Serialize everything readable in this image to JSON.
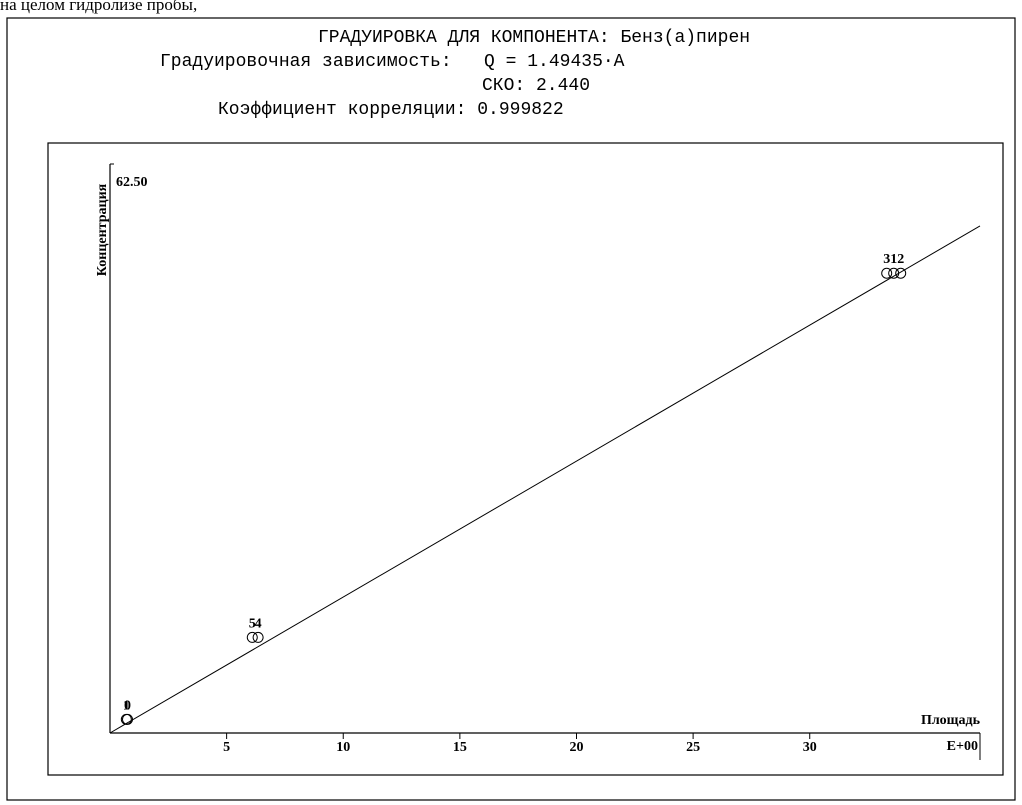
{
  "page_note": "на   целом   гидролизе   пробы,",
  "header": {
    "title": "ГРАДУИРОВКА ДЛЯ КОМПОНЕНТА: Бенз(а)пирен",
    "dependence": "Градуировочная зависимость:   Q = 1.49435·A",
    "sko": "СКО: 2.440",
    "correlation": "Коэффициент корреляции: 0.999822"
  },
  "chart_data": {
    "type": "scatter",
    "y_label": "Концентрация",
    "x_label": "Площадь",
    "x_exponent": "E+00",
    "xlim": [
      0,
      37.3
    ],
    "ylim": [
      0,
      62.5
    ],
    "xticks": [
      5,
      10,
      15,
      20,
      25,
      30
    ],
    "yticks": [
      {
        "value": 62.5,
        "label": "62.50"
      }
    ],
    "series": [
      {
        "x": [
          33.3,
          33.6,
          33.9,
          6.1,
          6.35,
          0.7,
          0.75
        ],
        "y": [
          50.5,
          50.5,
          50.5,
          10.5,
          10.5,
          1.5,
          1.5
        ],
        "point_labels": [
          "3",
          "1",
          "2",
          "5",
          "4",
          "1",
          "0"
        ]
      }
    ],
    "fit_line": {
      "x": [
        0,
        37.3
      ],
      "y": [
        0,
        55.7
      ]
    }
  }
}
